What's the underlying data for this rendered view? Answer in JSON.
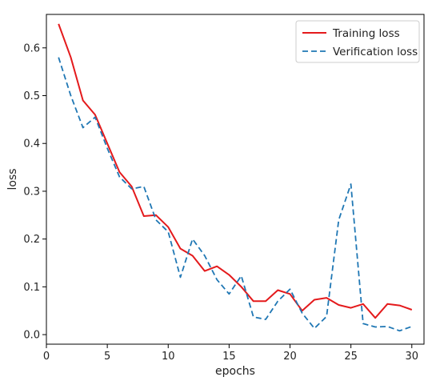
{
  "chart_data": {
    "type": "line",
    "xlabel": "epochs",
    "ylabel": "loss",
    "xlim": [
      0,
      31
    ],
    "ylim": [
      -0.02,
      0.67
    ],
    "xticks": [
      0,
      5,
      10,
      15,
      20,
      25,
      30
    ],
    "yticks": [
      0.0,
      0.1,
      0.2,
      0.3,
      0.4,
      0.5,
      0.6
    ],
    "grid": false,
    "legend_position": "top-right",
    "x": [
      1,
      2,
      3,
      4,
      5,
      6,
      7,
      8,
      9,
      10,
      11,
      12,
      13,
      14,
      15,
      16,
      17,
      18,
      19,
      20,
      21,
      22,
      23,
      24,
      25,
      26,
      27,
      28,
      29,
      30
    ],
    "series": [
      {
        "name": "Training loss",
        "color": "#e41a1c",
        "style": "solid",
        "values": [
          0.65,
          0.58,
          0.49,
          0.46,
          0.4,
          0.34,
          0.31,
          0.248,
          0.25,
          0.225,
          0.18,
          0.165,
          0.133,
          0.143,
          0.125,
          0.1,
          0.07,
          0.07,
          0.093,
          0.085,
          0.05,
          0.073,
          0.077,
          0.062,
          0.056,
          0.064,
          0.035,
          0.064,
          0.061,
          0.052
        ]
      },
      {
        "name": "Verification loss",
        "color": "#1f77b4",
        "style": "dashed",
        "values": [
          0.58,
          0.5,
          0.433,
          0.455,
          0.39,
          0.33,
          0.305,
          0.31,
          0.24,
          0.215,
          0.12,
          0.2,
          0.165,
          0.115,
          0.085,
          0.123,
          0.037,
          0.032,
          0.07,
          0.095,
          0.045,
          0.013,
          0.038,
          0.24,
          0.315,
          0.023,
          0.016,
          0.017,
          0.008,
          0.017
        ]
      }
    ]
  }
}
